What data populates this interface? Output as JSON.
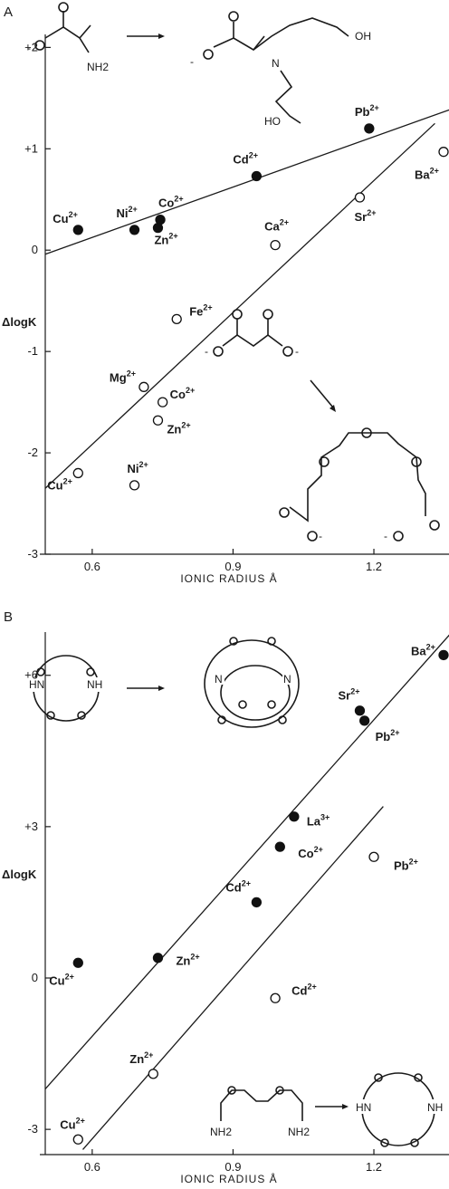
{
  "chart_data": [
    {
      "panel": "A",
      "type": "scatter",
      "xlabel": "IONIC RADIUS Å",
      "ylabel": "ΔlogK",
      "xlim": [
        0.5,
        1.36
      ],
      "ylim": [
        -3,
        2.2
      ],
      "x_ticks": [
        "0.6",
        "0.9",
        "1.2"
      ],
      "y_ticks": [
        "+2",
        "+1",
        "0",
        "-1",
        "-2",
        "-3"
      ],
      "molecule_labels": [
        "NH2",
        "N",
        "OH",
        "HO"
      ],
      "series": [
        {
          "marker": "filled",
          "points": [
            {
              "ion": "Cu2+",
              "x": 0.57,
              "y": 0.2
            },
            {
              "ion": "Ni2+",
              "x": 0.69,
              "y": 0.2
            },
            {
              "ion": "Zn2+",
              "x": 0.74,
              "y": 0.22
            },
            {
              "ion": "Co2+",
              "x": 0.745,
              "y": 0.3
            },
            {
              "ion": "Cd2+",
              "x": 0.95,
              "y": 0.73
            },
            {
              "ion": "Pb2+",
              "x": 1.19,
              "y": 1.2
            }
          ]
        },
        {
          "marker": "open",
          "points": [
            {
              "ion": "Cu2+",
              "x": 0.57,
              "y": -2.2
            },
            {
              "ion": "Ni2+",
              "x": 0.69,
              "y": -2.32
            },
            {
              "ion": "Zn2+",
              "x": 0.74,
              "y": -1.68
            },
            {
              "ion": "Co2+",
              "x": 0.75,
              "y": -1.5
            },
            {
              "ion": "Mg2+",
              "x": 0.71,
              "y": -1.35
            },
            {
              "ion": "Fe2+",
              "x": 0.78,
              "y": -0.68
            },
            {
              "ion": "Ca2+",
              "x": 0.99,
              "y": 0.05
            },
            {
              "ion": "Sr2+",
              "x": 1.17,
              "y": 0.52
            },
            {
              "ion": "Ba2+",
              "x": 1.36,
              "y": 0.97
            }
          ]
        }
      ],
      "lines": [
        {
          "x": [
            0.5,
            1.37
          ],
          "y": [
            -0.04,
            1.4
          ]
        },
        {
          "x": [
            0.5,
            1.33
          ],
          "y": [
            -2.35,
            1.25
          ]
        }
      ]
    },
    {
      "panel": "B",
      "type": "scatter",
      "xlabel": "IONIC RADIUS Å",
      "ylabel": "ΔlogK",
      "xlim": [
        0.5,
        1.36
      ],
      "ylim": [
        -3.5,
        7
      ],
      "x_ticks": [
        "0.6",
        "0.9",
        "1.2"
      ],
      "y_ticks": [
        "+6",
        "+3",
        "0",
        "-3"
      ],
      "molecule_labels": [
        "HN",
        "NH",
        "N",
        "N",
        "NH2",
        "NH2",
        "HN",
        "NH"
      ],
      "series": [
        {
          "marker": "filled",
          "points": [
            {
              "ion": "Cu2+",
              "x": 0.57,
              "y": 0.3
            },
            {
              "ion": "Zn2+",
              "x": 0.74,
              "y": 0.4
            },
            {
              "ion": "Cd2+",
              "x": 0.95,
              "y": 1.5
            },
            {
              "ion": "Co2+",
              "x": 1.0,
              "y": 2.6
            },
            {
              "ion": "La3+",
              "x": 1.03,
              "y": 3.2
            },
            {
              "ion": "Pb2+",
              "x": 1.18,
              "y": 5.1
            },
            {
              "ion": "Sr2+",
              "x": 1.17,
              "y": 5.3
            },
            {
              "ion": "Ba2+",
              "x": 1.36,
              "y": 6.4
            }
          ]
        },
        {
          "marker": "open",
          "points": [
            {
              "ion": "Cu2+",
              "x": 0.57,
              "y": -3.2
            },
            {
              "ion": "Zn2+",
              "x": 0.73,
              "y": -1.9
            },
            {
              "ion": "Cd2+",
              "x": 0.99,
              "y": -0.4
            },
            {
              "ion": "Pb2+",
              "x": 1.2,
              "y": 2.4
            }
          ]
        }
      ],
      "lines": [
        {
          "x": [
            0.5,
            1.38
          ],
          "y": [
            -2.2,
            7.0
          ]
        },
        {
          "x": [
            0.58,
            1.22
          ],
          "y": [
            -3.4,
            3.4
          ]
        }
      ]
    }
  ]
}
